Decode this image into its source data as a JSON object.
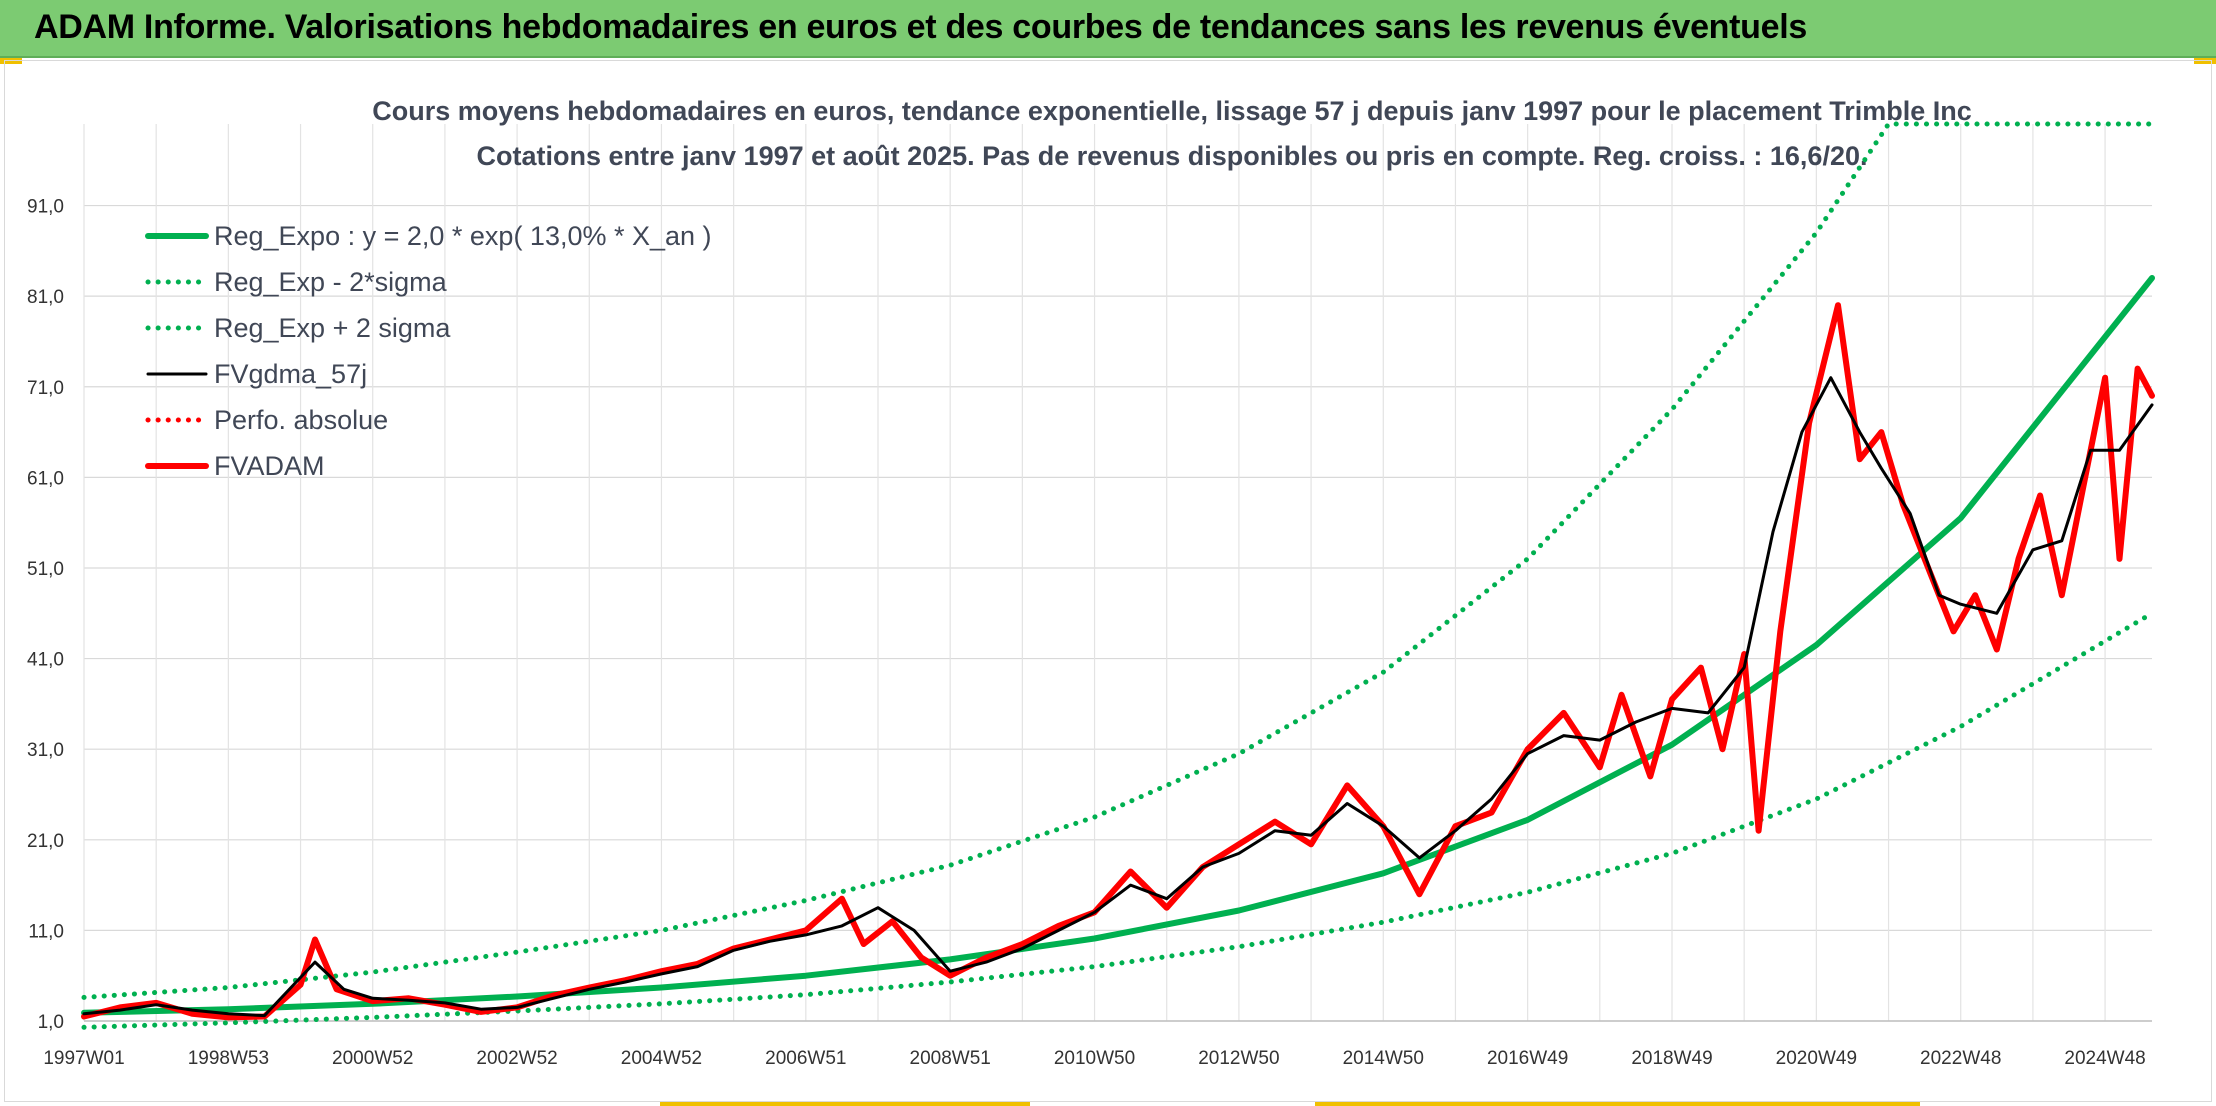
{
  "header": {
    "title": "ADAM Informe. Valorisations hebdomadaires en euros et des courbes de tendances sans les revenus éventuels"
  },
  "colors": {
    "banner": "#7ccb72",
    "trend": "#00b050",
    "smooth": "#000000",
    "price": "#ff0000",
    "accent": "#f0c000"
  },
  "chart_data": {
    "type": "line",
    "title": "Cours moyens hebdomadaires en euros, tendance exponentielle, lissage 57 j depuis janv 1997 pour le placement Trimble Inc",
    "subtitle": "Cotations entre janv 1997 et août 2025. Pas de revenus disponibles ou pris en compte. Reg. croiss. : 16,6/20.",
    "xlabel": "",
    "ylabel": "",
    "x_range": [
      "1997W01",
      "2025W35"
    ],
    "x_tick_labels": [
      "1997W01",
      "1998W53",
      "2000W52",
      "2002W52",
      "2004W52",
      "2006W51",
      "2008W51",
      "2010W50",
      "2012W50",
      "2014W50",
      "2016W49",
      "2018W49",
      "2020W49",
      "2022W48",
      "2024W48"
    ],
    "y_tick_labels": [
      "1,0",
      "11,0",
      "21,0",
      "31,0",
      "41,0",
      "51,0",
      "61,0",
      "71,0",
      "81,0",
      "91,0"
    ],
    "ylim": [
      1,
      100
    ],
    "grid": true,
    "legend_position": "top-left",
    "series": [
      {
        "name": "Reg_Expo : y = 2,0 * exp( 13,0% *  X_an )",
        "style": "solid-thick",
        "color": "#00b050",
        "x": [
          1997.0,
          1999.0,
          2001.0,
          2003.0,
          2005.0,
          2007.0,
          2009.0,
          2011.0,
          2013.0,
          2015.0,
          2017.0,
          2019.0,
          2021.0,
          2023.0,
          2025.65
        ],
        "values": [
          1.9,
          2.3,
          2.9,
          3.7,
          4.7,
          6.0,
          7.8,
          10.1,
          13.2,
          17.3,
          23.2,
          31.5,
          42.5,
          56.5,
          83.0
        ]
      },
      {
        "name": "Reg_Exp - 2*sigma",
        "style": "dotted",
        "color": "#00b050",
        "x": [
          1997.0,
          1999.0,
          2001.0,
          2003.0,
          2005.0,
          2007.0,
          2009.0,
          2011.0,
          2013.0,
          2015.0,
          2017.0,
          2019.0,
          2021.0,
          2023.0,
          2025.65
        ],
        "values": [
          0.3,
          0.8,
          1.4,
          2.1,
          2.9,
          3.9,
          5.3,
          7.0,
          9.2,
          11.9,
          15.2,
          19.5,
          25.5,
          33.5,
          46.0
        ]
      },
      {
        "name": "Reg_Exp + 2 sigma",
        "style": "dotted",
        "color": "#00b050",
        "x": [
          1997.0,
          1999.0,
          2001.0,
          2003.0,
          2005.0,
          2007.0,
          2009.0,
          2011.0,
          2013.0,
          2015.0,
          2017.0,
          2019.0,
          2021.0,
          2022.0,
          2025.65
        ],
        "values": [
          3.6,
          4.7,
          6.4,
          8.6,
          11.0,
          14.3,
          18.2,
          23.5,
          30.5,
          39.5,
          52.0,
          68.5,
          88.0,
          100.0,
          100.0
        ]
      },
      {
        "name": "FVgdma_57j",
        "style": "solid",
        "color": "#000000",
        "x": [
          1997.0,
          1997.5,
          1998.0,
          1998.5,
          1999.0,
          1999.5,
          2000.2,
          2000.6,
          2001.0,
          2001.5,
          2002.0,
          2002.5,
          2003.0,
          2003.5,
          2004.0,
          2004.5,
          2005.0,
          2005.5,
          2006.0,
          2006.5,
          2007.0,
          2007.5,
          2008.0,
          2008.5,
          2009.0,
          2009.5,
          2010.0,
          2010.5,
          2011.0,
          2011.5,
          2012.0,
          2012.5,
          2013.0,
          2013.5,
          2014.0,
          2014.5,
          2015.0,
          2015.5,
          2016.0,
          2016.5,
          2017.0,
          2017.5,
          2018.0,
          2018.5,
          2019.0,
          2019.5,
          2020.0,
          2020.4,
          2020.8,
          2021.2,
          2021.6,
          2021.9,
          2022.3,
          2022.7,
          2023.0,
          2023.5,
          2024.0,
          2024.4,
          2024.8,
          2025.2,
          2025.65
        ],
        "values": [
          1.8,
          2.2,
          2.8,
          2.2,
          1.8,
          1.6,
          7.5,
          4.5,
          3.5,
          3.3,
          3.0,
          2.3,
          2.5,
          3.5,
          4.5,
          5.3,
          6.2,
          7.0,
          8.8,
          9.8,
          10.5,
          11.5,
          13.5,
          11.0,
          6.5,
          7.5,
          9.0,
          11.0,
          13.0,
          16.0,
          14.5,
          18.0,
          19.5,
          22.0,
          21.5,
          25.0,
          22.5,
          19.0,
          22.0,
          25.5,
          30.5,
          32.5,
          32.0,
          34.0,
          35.5,
          35.0,
          40.0,
          55.0,
          66.0,
          72.0,
          66.0,
          62.0,
          57.0,
          48.0,
          47.0,
          46.0,
          53.0,
          54.0,
          64.0,
          64.0,
          69.0
        ]
      },
      {
        "name": "Perfo. absolue",
        "style": "dotted",
        "color": "#ff0000",
        "x": [],
        "values": []
      },
      {
        "name": "FVADAM",
        "style": "solid-thick",
        "color": "#ff0000",
        "x": [
          1997.0,
          1997.5,
          1998.0,
          1998.5,
          1999.0,
          1999.5,
          2000.0,
          2000.2,
          2000.5,
          2001.0,
          2001.5,
          2002.0,
          2002.5,
          2003.0,
          2003.5,
          2004.0,
          2004.5,
          2005.0,
          2005.5,
          2006.0,
          2006.5,
          2007.0,
          2007.5,
          2007.8,
          2008.2,
          2008.6,
          2009.0,
          2009.5,
          2010.0,
          2010.5,
          2011.0,
          2011.5,
          2012.0,
          2012.5,
          2013.0,
          2013.5,
          2014.0,
          2014.5,
          2015.0,
          2015.5,
          2016.0,
          2016.5,
          2017.0,
          2017.5,
          2018.0,
          2018.3,
          2018.7,
          2019.0,
          2019.4,
          2019.7,
          2020.0,
          2020.2,
          2020.5,
          2020.9,
          2021.3,
          2021.6,
          2021.9,
          2022.2,
          2022.6,
          2022.9,
          2023.2,
          2023.5,
          2023.8,
          2024.1,
          2024.4,
          2024.7,
          2025.0,
          2025.2,
          2025.45,
          2025.65
        ],
        "values": [
          1.5,
          2.5,
          3.0,
          1.8,
          1.4,
          1.5,
          5.0,
          10.0,
          4.5,
          3.2,
          3.5,
          2.8,
          2.0,
          2.5,
          3.8,
          4.7,
          5.5,
          6.5,
          7.3,
          9.0,
          10.0,
          11.0,
          14.5,
          9.5,
          12.0,
          8.0,
          6.0,
          8.0,
          9.5,
          11.5,
          13.0,
          17.5,
          13.5,
          18.0,
          20.5,
          23.0,
          20.5,
          27.0,
          22.5,
          15.0,
          22.5,
          24.0,
          31.0,
          35.0,
          29.0,
          37.0,
          28.0,
          36.5,
          40.0,
          31.0,
          41.5,
          22.0,
          44.0,
          67.0,
          80.0,
          63.0,
          66.0,
          58.0,
          50.0,
          44.0,
          48.0,
          42.0,
          52.0,
          59.0,
          48.0,
          60.0,
          72.0,
          52.0,
          73.0,
          70.0
        ]
      }
    ]
  }
}
